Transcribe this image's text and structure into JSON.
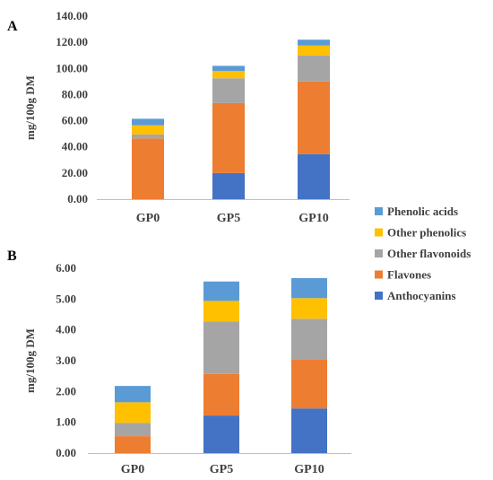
{
  "colors": {
    "anthocyanins": "#4472c4",
    "flavones": "#ed7d31",
    "other_flavonoids": "#a5a5a5",
    "other_phenolics": "#ffc000",
    "phenolic_acids": "#5b9bd5",
    "axis": "#bfbfbf"
  },
  "legend": [
    "Phenolic acids",
    "Other phenolics",
    "Other flavonoids",
    "Flavones",
    "Anthocyanins"
  ],
  "chart_data": [
    {
      "type": "bar",
      "stacked": true,
      "panel_label": "A",
      "ylabel": "mg/100g DM",
      "ylim": [
        0,
        140
      ],
      "yticks": [
        "0.00",
        "20.00",
        "40.00",
        "60.00",
        "80.00",
        "100.00",
        "120.00",
        "140.00"
      ],
      "categories": [
        "GP0",
        "GP5",
        "GP10"
      ],
      "series": [
        {
          "name": "Anthocyanins",
          "values": [
            0,
            20,
            34.5
          ]
        },
        {
          "name": "Flavones",
          "values": [
            46.5,
            53.5,
            55.5
          ]
        },
        {
          "name": "Other flavonoids",
          "values": [
            3,
            19,
            20
          ]
        },
        {
          "name": "Other phenolics",
          "values": [
            7,
            5.5,
            7.5
          ]
        },
        {
          "name": "Phenolic acids",
          "values": [
            5,
            4,
            4.5
          ]
        }
      ]
    },
    {
      "type": "bar",
      "stacked": true,
      "panel_label": "B",
      "ylabel": "mg/100g DM",
      "ylim": [
        0,
        6
      ],
      "yticks": [
        "0.00",
        "1.00",
        "2.00",
        "3.00",
        "4.00",
        "5.00",
        "6.00"
      ],
      "categories": [
        "GP0",
        "GP5",
        "GP10"
      ],
      "series": [
        {
          "name": "Anthocyanins",
          "values": [
            0,
            1.22,
            1.45
          ]
        },
        {
          "name": "Flavones",
          "values": [
            0.55,
            1.35,
            1.58
          ]
        },
        {
          "name": "Other flavonoids",
          "values": [
            0.43,
            1.7,
            1.33
          ]
        },
        {
          "name": "Other phenolics",
          "values": [
            0.67,
            0.67,
            0.67
          ]
        },
        {
          "name": "Phenolic acids",
          "values": [
            0.53,
            0.63,
            0.65
          ]
        }
      ]
    }
  ]
}
